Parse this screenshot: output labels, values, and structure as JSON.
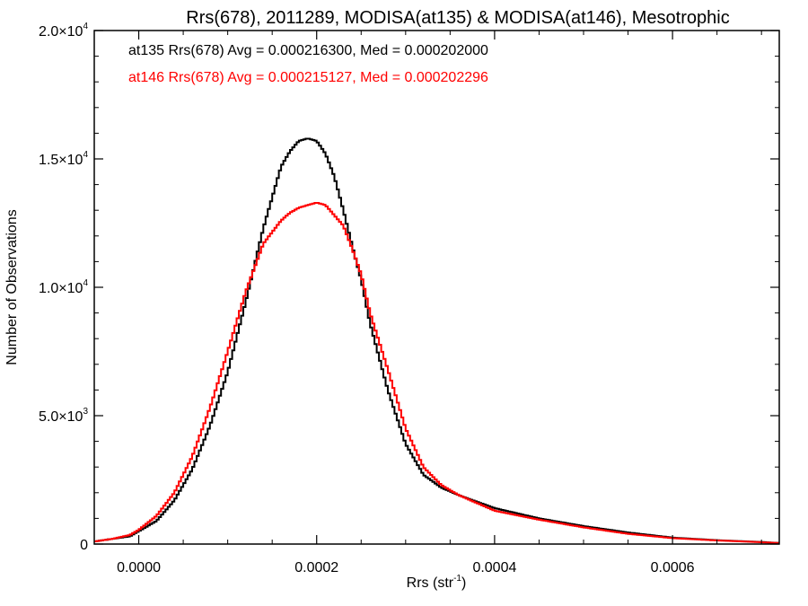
{
  "chart_data": {
    "type": "step-histogram",
    "title": "Rrs(678), 2011289, MODISA(at135) & MODISA(at146), Mesotrophic",
    "xlabel": {
      "text": "Rrs (str",
      "sup": "-1",
      "suffix": ")"
    },
    "ylabel": "Number of Observations",
    "xlim": [
      -5e-05,
      0.00072
    ],
    "ylim": [
      0,
      20000
    ],
    "x_ticks": [
      {
        "value": 0.0,
        "label": "0.0000"
      },
      {
        "value": 0.0002,
        "label": "0.0002"
      },
      {
        "value": 0.0004,
        "label": "0.0004"
      },
      {
        "value": 0.0006,
        "label": "0.0006"
      }
    ],
    "y_ticks": [
      {
        "value": 0,
        "mant": "0",
        "exp": ""
      },
      {
        "value": 5000,
        "mant": "5.0×10",
        "exp": "3"
      },
      {
        "value": 10000,
        "mant": "1.0×10",
        "exp": "4"
      },
      {
        "value": 15000,
        "mant": "1.5×10",
        "exp": "4"
      },
      {
        "value": 20000,
        "mant": "2.0×10",
        "exp": "4"
      }
    ],
    "annotations": [
      {
        "text": "at135 Rrs(678) Avg = 0.000216300, Med = 0.000202000",
        "color": "#000000"
      },
      {
        "text": "at146 Rrs(678) Avg = 0.000215127, Med = 0.000202296",
        "color": "#ff0000"
      }
    ],
    "series": [
      {
        "color": "#000000",
        "x": [
          -5e-05,
          -3e-05,
          -1e-05,
          0.0,
          2e-05,
          4e-05,
          6e-05,
          8e-05,
          0.0001,
          0.00012,
          0.00014,
          0.00016,
          0.00017,
          0.00018,
          0.00019,
          0.0002,
          0.00021,
          0.00022,
          0.00023,
          0.00024,
          0.00025,
          0.00026,
          0.00028,
          0.0003,
          0.00032,
          0.00034,
          0.00036,
          0.0004,
          0.00045,
          0.0005,
          0.00055,
          0.0006,
          0.00065,
          0.0007,
          0.00072
        ],
        "y": [
          100,
          200,
          300,
          500,
          900,
          1700,
          2900,
          4600,
          6700,
          9400,
          12300,
          14700,
          15300,
          15700,
          15800,
          15700,
          15200,
          14300,
          13000,
          11600,
          10300,
          8600,
          6000,
          3900,
          2700,
          2200,
          1900,
          1400,
          1000,
          700,
          450,
          250,
          150,
          80,
          40
        ]
      },
      {
        "color": "#ff0000",
        "x": [
          -5e-05,
          -3e-05,
          -1e-05,
          0.0,
          2e-05,
          4e-05,
          6e-05,
          8e-05,
          0.0001,
          0.00012,
          0.00014,
          0.00016,
          0.00017,
          0.00018,
          0.00019,
          0.0002,
          0.00021,
          0.00022,
          0.00023,
          0.00024,
          0.00025,
          0.00026,
          0.00028,
          0.0003,
          0.00032,
          0.00034,
          0.00036,
          0.0004,
          0.00045,
          0.0005,
          0.00055,
          0.0006,
          0.00065,
          0.0007,
          0.00072
        ],
        "y": [
          100,
          200,
          350,
          550,
          1100,
          2000,
          3400,
          5300,
          7500,
          9800,
          11700,
          12600,
          12900,
          13100,
          13200,
          13300,
          13200,
          12800,
          12400,
          11500,
          10500,
          9000,
          6800,
          4500,
          3000,
          2300,
          1900,
          1300,
          950,
          650,
          400,
          230,
          140,
          70,
          40
        ]
      }
    ]
  }
}
